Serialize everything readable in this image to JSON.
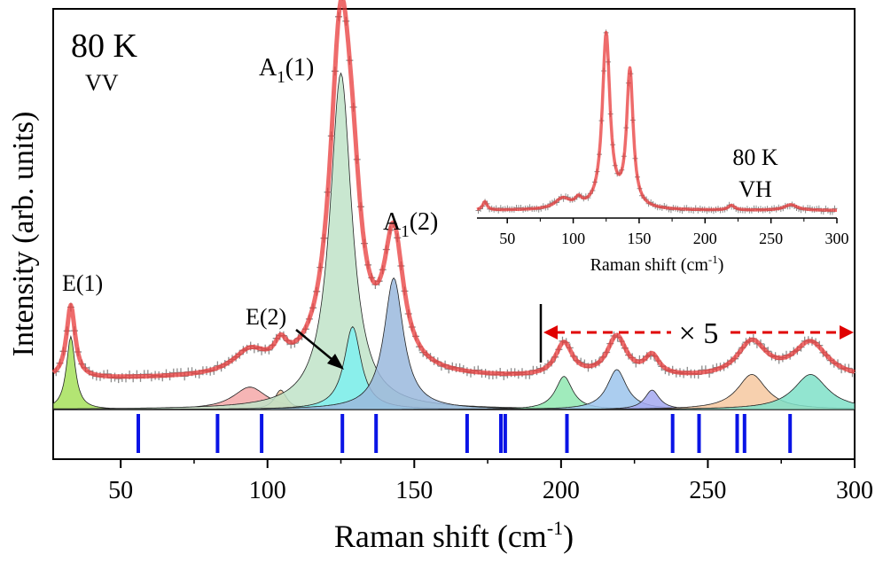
{
  "chart_data": [
    {
      "type": "line",
      "title": "",
      "xlabel": "Raman shift (cm",
      "xlabel_sup": "-1",
      "xlabel_close": ")",
      "ylabel": "Intensity (arb. units)",
      "xlim": [
        27,
        300
      ],
      "xticks": [
        50,
        100,
        150,
        200,
        250,
        300
      ],
      "annotations": {
        "temperature": "80 K",
        "polarization": "VV",
        "scale_factor": "× 5",
        "scale_from_x": 193
      },
      "peak_labels": [
        {
          "text": "E(1)",
          "x": 33
        },
        {
          "text": "A",
          "sub": "1",
          "tail": "(1)",
          "x": 125
        },
        {
          "text": "A",
          "sub": "1",
          "tail": "(2)",
          "x": 143
        },
        {
          "text": "E(2)",
          "x": 129
        }
      ],
      "baseline": 0.7,
      "fitted_components": [
        {
          "center": 33,
          "width": 1.8,
          "amplitude": 7.5,
          "color": "#a6e05a"
        },
        {
          "center": 94,
          "width": 7,
          "amplitude": 2.3,
          "color": "#f5a8a8"
        },
        {
          "center": 104.5,
          "width": 2.5,
          "amplitude": 2.0,
          "color": "#f2c39a"
        },
        {
          "center": 125,
          "width": 4.5,
          "amplitude": 34.5,
          "color": "#bfe3c8"
        },
        {
          "center": 129,
          "width": 3.5,
          "amplitude": 8.5,
          "color": "#7ff0f0"
        },
        {
          "center": 143,
          "width": 4,
          "amplitude": 13.5,
          "color": "#9ab8dd"
        },
        {
          "center": 201,
          "width": 3.5,
          "amplitude": 3.4,
          "color": "#8fe8b0"
        },
        {
          "center": 219,
          "width": 4,
          "amplitude": 4.1,
          "color": "#9cc4ec"
        },
        {
          "center": 231,
          "width": 3,
          "amplitude": 2.0,
          "color": "#a3a8f0"
        },
        {
          "center": 265,
          "width": 6,
          "amplitude": 3.6,
          "color": "#f6c8a0"
        },
        {
          "center": 285,
          "width": 7,
          "amplitude": 3.6,
          "color": "#7fe0c8"
        }
      ],
      "calculated_modes": [
        56,
        83,
        98,
        125.5,
        137,
        168,
        179.5,
        181,
        202,
        238,
        247,
        260,
        262.5,
        278
      ]
    },
    {
      "type": "line",
      "title": "",
      "xlabel": "Raman shift (cm",
      "xlabel_sup": "-1",
      "xlabel_close": ")",
      "xlim": [
        27,
        300
      ],
      "xticks": [
        50,
        100,
        150,
        200,
        250,
        300
      ],
      "annotations": {
        "temperature": "80 K",
        "polarization": "VH"
      },
      "baseline": 0.8,
      "peaks": [
        {
          "center": 33,
          "width": 2,
          "amplitude": 0.9
        },
        {
          "center": 92,
          "width": 7,
          "amplitude": 1.1
        },
        {
          "center": 104,
          "width": 3,
          "amplitude": 0.8
        },
        {
          "center": 125,
          "width": 3.5,
          "amplitude": 18.5
        },
        {
          "center": 143,
          "width": 3,
          "amplitude": 14.5
        },
        {
          "center": 220,
          "width": 3,
          "amplitude": 0.5
        },
        {
          "center": 265,
          "width": 6,
          "amplitude": 0.6
        }
      ]
    }
  ]
}
